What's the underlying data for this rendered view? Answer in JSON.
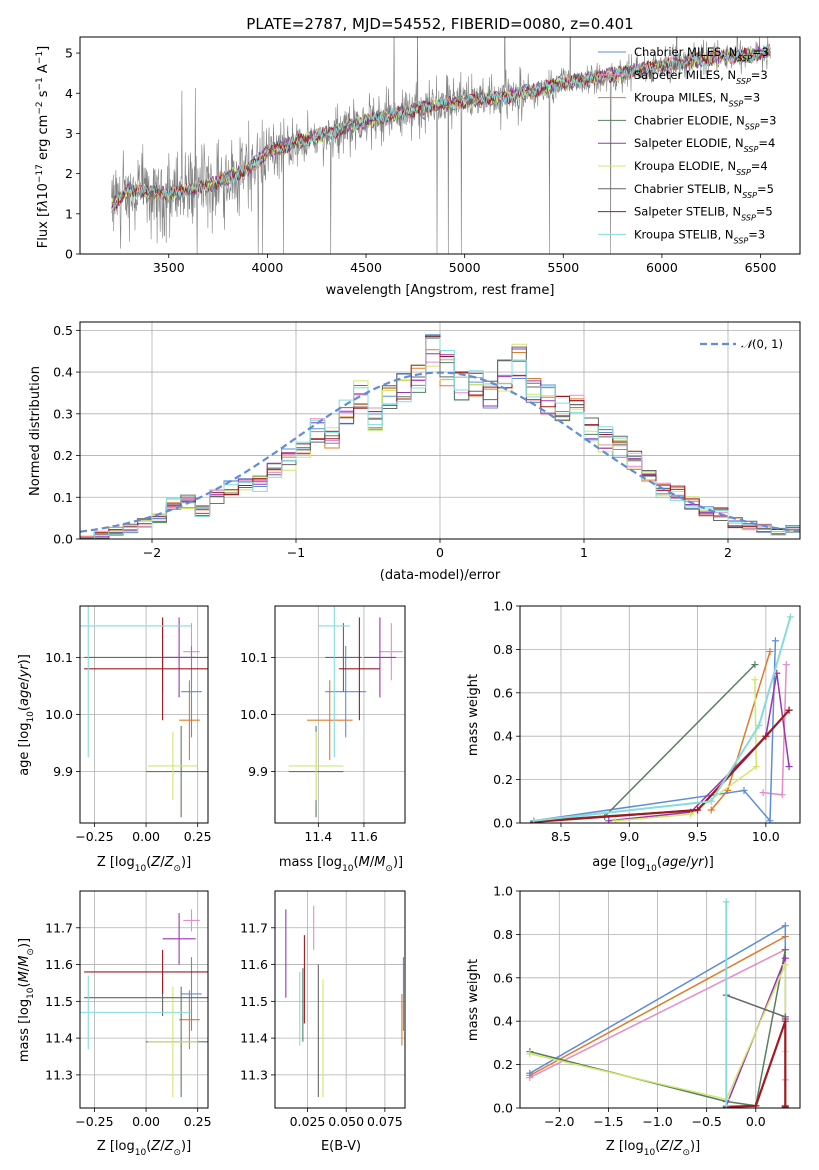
{
  "figure": {
    "title": "PLATE=2787, MJD=54552, FIBERID=0080, z=0.401"
  },
  "colors": [
    "#e07b2a",
    "#e88bc8",
    "#5f8dd9",
    "#587f5f",
    "#9a35b0",
    "#d0e86a",
    "#666666",
    "#a01a20",
    "#86dcdc"
  ],
  "legend_spectrum": [
    {
      "label": "Chabrier MILES, N$_{SSP}$=3",
      "base": "Chabrier MILES, N",
      "sub": "SSP",
      "tail": "=3",
      "color": "#5f8dd9"
    },
    {
      "label": "Salpeter MILES, N$_{SSP}$=3",
      "base": "Salpeter MILES, N",
      "sub": "SSP",
      "tail": "=3",
      "color": "#e88bc8"
    },
    {
      "label": "Kroupa MILES, N$_{SSP}$=3",
      "base": "Kroupa MILES, N",
      "sub": "SSP",
      "tail": "=3",
      "color": "#e07b2a"
    },
    {
      "label": "Chabrier ELODIE, N$_{SSP}$=3",
      "base": "Chabrier ELODIE, N",
      "sub": "SSP",
      "tail": "=3",
      "color": "#587f5f"
    },
    {
      "label": "Salpeter ELODIE, N$_{SSP}$=4",
      "base": "Salpeter ELODIE, N",
      "sub": "SSP",
      "tail": "=4",
      "color": "#9a35b0"
    },
    {
      "label": "Kroupa ELODIE, N$_{SSP}$=4",
      "base": "Kroupa ELODIE, N",
      "sub": "SSP",
      "tail": "=4",
      "color": "#d0e86a"
    },
    {
      "label": "Chabrier STELIB, N$_{SSP}$=5",
      "base": "Chabrier STELIB, N",
      "sub": "SSP",
      "tail": "=5",
      "color": "#666666"
    },
    {
      "label": "Salpeter STELIB, N$_{SSP}$=5",
      "base": "Salpeter STELIB, N",
      "sub": "SSP",
      "tail": "=5",
      "color": "#a01a20"
    },
    {
      "label": "Kroupa STELIB, N$_{SSP}$=3",
      "base": "Kroupa STELIB, N",
      "sub": "SSP",
      "tail": "=3",
      "color": "#86dcdc"
    }
  ],
  "chart_data": [
    {
      "id": "spectrum",
      "type": "line",
      "xlabel": "wavelength [Angstrom, rest frame]",
      "ylabel": "Flux [f$_\\lambda$10$^{-17}$ erg cm$^{-2}$ s$^{-1}$ A$^{-1}$]",
      "xlim": [
        3050,
        6700
      ],
      "ylim": [
        0,
        5.4
      ],
      "xticks": [
        3500,
        4000,
        4500,
        5000,
        5500,
        6000,
        6500
      ],
      "yticks": [
        0,
        1,
        2,
        3,
        4,
        5
      ],
      "observed": {
        "color": "#808080",
        "x_range": [
          3210,
          6550
        ],
        "continuum": [
          [
            3210,
            1.2
          ],
          [
            3300,
            1.55
          ],
          [
            3500,
            1.5
          ],
          [
            3700,
            1.7
          ],
          [
            3900,
            2.1
          ],
          [
            4000,
            2.55
          ],
          [
            4200,
            2.8
          ],
          [
            4500,
            3.3
          ],
          [
            4800,
            3.65
          ],
          [
            5000,
            3.8
          ],
          [
            5200,
            3.85
          ],
          [
            5500,
            4.25
          ],
          [
            5800,
            4.45
          ],
          [
            6000,
            4.7
          ],
          [
            6300,
            4.9
          ],
          [
            6550,
            5.0
          ]
        ]
      },
      "models": {
        "continuum": [
          [
            3210,
            1.2
          ],
          [
            3300,
            1.6
          ],
          [
            3500,
            1.5
          ],
          [
            3700,
            1.7
          ],
          [
            3900,
            2.1
          ],
          [
            4000,
            2.55
          ],
          [
            4200,
            2.85
          ],
          [
            4500,
            3.3
          ],
          [
            4800,
            3.65
          ],
          [
            5000,
            3.8
          ],
          [
            5200,
            3.9
          ],
          [
            5500,
            4.25
          ],
          [
            5800,
            4.5
          ],
          [
            6000,
            4.7
          ],
          [
            6300,
            4.9
          ],
          [
            6550,
            5.0
          ]
        ]
      }
    },
    {
      "id": "residuals",
      "type": "histogram",
      "xlabel": "(data-model)/error",
      "ylabel": "Normed distribution",
      "xlim": [
        -2.5,
        2.5
      ],
      "ylim": [
        0,
        0.52
      ],
      "xticks": [
        -2,
        -1,
        0,
        1,
        2
      ],
      "yticks": [
        0.0,
        0.1,
        0.2,
        0.3,
        0.4,
        0.5
      ],
      "bin_edges": [
        -2.5,
        2.5
      ],
      "bin_width": 0.1,
      "base_bins": [
        0.005,
        0.01,
        0.02,
        0.025,
        0.04,
        0.05,
        0.08,
        0.09,
        0.07,
        0.1,
        0.12,
        0.14,
        0.13,
        0.16,
        0.19,
        0.22,
        0.26,
        0.24,
        0.3,
        0.34,
        0.29,
        0.35,
        0.36,
        0.39,
        0.46,
        0.41,
        0.37,
        0.38,
        0.35,
        0.39,
        0.42,
        0.36,
        0.33,
        0.32,
        0.31,
        0.27,
        0.24,
        0.22,
        0.19,
        0.16,
        0.12,
        0.11,
        0.09,
        0.07,
        0.06,
        0.04,
        0.03,
        0.025,
        0.02,
        0.02
      ],
      "normal": {
        "label": "$\\mathcal{N}(0,1)$",
        "color": "#5f8dd9",
        "style": "dashed"
      }
    },
    {
      "id": "age-vs-Z",
      "type": "errorbar",
      "xlabel": "Z [log$_{10}$(Z/Z$_\\odot$)]",
      "ylabel": "age  [log$_{10}$(age/yr)]",
      "xlim": [
        -0.32,
        0.3
      ],
      "ylim": [
        9.81,
        10.19
      ],
      "xticks": [
        -0.25,
        0.0,
        0.25
      ],
      "yticks": [
        9.9,
        10.0,
        10.1
      ],
      "points": [
        {
          "color": "#e07b2a",
          "x": 0.21,
          "xerr": 0.05,
          "y": 9.99,
          "yerr": 0.07
        },
        {
          "color": "#e88bc8",
          "x": 0.22,
          "xerr": 0.04,
          "y": 10.11,
          "yerr": 0.05
        },
        {
          "color": "#5f8dd9",
          "x": 0.22,
          "xerr": 0.05,
          "y": 10.04,
          "yerr": 0.08
        },
        {
          "color": "#587f5f",
          "x": 0.17,
          "xerr": 0.17,
          "y": 9.9,
          "yerr": 0.08
        },
        {
          "color": "#9a35b0",
          "x": 0.16,
          "xerr": 0.08,
          "y": 10.1,
          "yerr": 0.07
        },
        {
          "color": "#d0e86a",
          "x": 0.13,
          "xerr": 0.12,
          "y": 9.91,
          "yerr": 0.06
        },
        {
          "color": "#666666",
          "x": 0.08,
          "xerr": 0.38,
          "y": 10.1,
          "yerr": 0.06
        },
        {
          "color": "#a01a20",
          "x": 0.08,
          "xerr": 0.38,
          "y": 10.08,
          "yerr": 0.09
        },
        {
          "color": "#86dcdc",
          "x": -0.28,
          "xerr": 0.5,
          "y": 10.155,
          "yerr": 0.23
        }
      ]
    },
    {
      "id": "age-vs-mass",
      "type": "errorbar",
      "xlabel": "mass [log$_{10}$(M/M$_\\odot$)]",
      "ylabel": "",
      "xlim": [
        11.21,
        11.78
      ],
      "ylim": [
        9.81,
        10.19
      ],
      "xticks": [
        11.4,
        11.6
      ],
      "yticks": [
        9.9,
        10.0,
        10.1
      ],
      "points": [
        {
          "color": "#e07b2a",
          "x": 11.45,
          "xerr": 0.1,
          "y": 9.99,
          "yerr": 0.07
        },
        {
          "color": "#e88bc8",
          "x": 11.72,
          "xerr": 0.05,
          "y": 10.11,
          "yerr": 0.05
        },
        {
          "color": "#5f8dd9",
          "x": 11.52,
          "xerr": 0.09,
          "y": 10.04,
          "yerr": 0.08
        },
        {
          "color": "#587f5f",
          "x": 11.39,
          "xerr": 0.12,
          "y": 9.9,
          "yerr": 0.08
        },
        {
          "color": "#9a35b0",
          "x": 11.67,
          "xerr": 0.07,
          "y": 10.1,
          "yerr": 0.07
        },
        {
          "color": "#d0e86a",
          "x": 11.39,
          "xerr": 0.12,
          "y": 9.91,
          "yerr": 0.06
        },
        {
          "color": "#666666",
          "x": 11.51,
          "xerr": 0.08,
          "y": 10.1,
          "yerr": 0.06
        },
        {
          "color": "#a01a20",
          "x": 11.58,
          "xerr": 0.09,
          "y": 10.08,
          "yerr": 0.09
        },
        {
          "color": "#86dcdc",
          "x": 11.47,
          "xerr": 0.07,
          "y": 10.155,
          "yerr": 0.23
        }
      ]
    },
    {
      "id": "massweight-vs-age",
      "type": "line",
      "xlabel": "age  [log$_{10}$(age/yr)]",
      "ylabel": "mass weight",
      "xlim": [
        8.2,
        10.25
      ],
      "ylim": [
        0,
        1.0
      ],
      "xticks": [
        8.5,
        9.0,
        9.5,
        10.0
      ],
      "yticks": [
        0.0,
        0.2,
        0.4,
        0.6,
        0.8,
        1.0
      ],
      "series": [
        {
          "color": "#e07b2a",
          "points": [
            [
              9.6,
              0.06
            ],
            [
              9.72,
              0.15
            ],
            [
              10.03,
              0.79
            ]
          ],
          "width": 1.5
        },
        {
          "color": "#e88bc8",
          "points": [
            [
              9.98,
              0.14
            ],
            [
              10.12,
              0.13
            ],
            [
              10.15,
              0.73
            ]
          ],
          "width": 1.5
        },
        {
          "color": "#5f8dd9",
          "points": [
            [
              8.3,
              0.01
            ],
            [
              9.84,
              0.15
            ],
            [
              10.03,
              0.01
            ],
            [
              10.07,
              0.84
            ]
          ],
          "width": 1.5
        },
        {
          "color": "#587f5f",
          "points": [
            [
              8.82,
              0.03
            ],
            [
              9.92,
              0.73
            ]
          ],
          "width": 1.5
        },
        {
          "color": "#9a35b0",
          "points": [
            [
              8.85,
              0.01
            ],
            [
              9.45,
              0.05
            ],
            [
              10.0,
              0.4
            ],
            [
              10.08,
              0.69
            ],
            [
              10.17,
              0.26
            ]
          ],
          "width": 1.5
        },
        {
          "color": "#d0e86a",
          "points": [
            [
              8.9,
              0.01
            ],
            [
              9.45,
              0.04
            ],
            [
              9.93,
              0.26
            ],
            [
              9.92,
              0.66
            ]
          ],
          "width": 1.5
        },
        {
          "color": "#666666",
          "points": [
            [
              8.3,
              0.01
            ],
            [
              9.5,
              0.06
            ],
            [
              10.17,
              0.52
            ]
          ],
          "width": 1.5
        },
        {
          "color": "#a01a20",
          "points": [
            [
              8.3,
              0.005
            ],
            [
              9.5,
              0.06
            ],
            [
              10.0,
              0.4
            ],
            [
              10.17,
              0.52
            ]
          ],
          "width": 2.2
        },
        {
          "color": "#86dcdc",
          "points": [
            [
              8.3,
              0.01
            ],
            [
              9.6,
              0.1
            ],
            [
              9.95,
              0.45
            ],
            [
              10.18,
              0.95
            ]
          ],
          "width": 2.0
        }
      ]
    },
    {
      "id": "mass-vs-Z",
      "type": "errorbar",
      "xlabel": "Z [log$_{10}$(Z/Z$_\\odot$)]",
      "ylabel": "mass [log$_{10}$(M/M$_\\odot$)]",
      "xlim": [
        -0.32,
        0.3
      ],
      "ylim": [
        11.21,
        11.8
      ],
      "xticks": [
        -0.25,
        0.0,
        0.25
      ],
      "yticks": [
        11.3,
        11.4,
        11.5,
        11.6,
        11.7
      ],
      "points": [
        {
          "color": "#e07b2a",
          "x": 0.21,
          "xerr": 0.05,
          "y": 11.45,
          "yerr": 0.08
        },
        {
          "color": "#e88bc8",
          "x": 0.22,
          "xerr": 0.04,
          "y": 11.72,
          "yerr": 0.03
        },
        {
          "color": "#5f8dd9",
          "x": 0.22,
          "xerr": 0.05,
          "y": 11.52,
          "yerr": 0.1
        },
        {
          "color": "#587f5f",
          "x": 0.17,
          "xerr": 0.17,
          "y": 11.39,
          "yerr": 0.15
        },
        {
          "color": "#9a35b0",
          "x": 0.16,
          "xerr": 0.08,
          "y": 11.67,
          "yerr": 0.07
        },
        {
          "color": "#d0e86a",
          "x": 0.13,
          "xerr": 0.12,
          "y": 11.39,
          "yerr": 0.15
        },
        {
          "color": "#666666",
          "x": 0.08,
          "xerr": 0.38,
          "y": 11.51,
          "yerr": 0.05
        },
        {
          "color": "#a01a20",
          "x": 0.08,
          "xerr": 0.38,
          "y": 11.58,
          "yerr": 0.06
        },
        {
          "color": "#86dcdc",
          "x": -0.28,
          "xerr": 0.5,
          "y": 11.47,
          "yerr": 0.1
        }
      ]
    },
    {
      "id": "mass-vs-ebv",
      "type": "errorbar",
      "xlabel": "E(B-V)",
      "ylabel": "",
      "xlim": [
        0.004,
        0.088
      ],
      "ylim": [
        11.21,
        11.8
      ],
      "xticks": [
        0.025,
        0.05,
        0.075
      ],
      "xticklabels": [
        "0.025",
        "0.050",
        "0.075"
      ],
      "yticks": [
        11.3,
        11.4,
        11.5,
        11.6,
        11.7
      ],
      "points": [
        {
          "color": "#e07b2a",
          "x": 0.086,
          "xerr": 0,
          "y": 11.45,
          "yerr": 0.07
        },
        {
          "color": "#e88bc8",
          "x": 0.029,
          "xerr": 0,
          "y": 11.7,
          "yerr": 0.06
        },
        {
          "color": "#5f8dd9",
          "x": 0.087,
          "xerr": 0,
          "y": 11.52,
          "yerr": 0.1
        },
        {
          "color": "#587f5f",
          "x": 0.022,
          "xerr": 0,
          "y": 11.49,
          "yerr": 0.1
        },
        {
          "color": "#9a35b0",
          "x": 0.011,
          "xerr": 0,
          "y": 11.63,
          "yerr": 0.12
        },
        {
          "color": "#d0e86a",
          "x": 0.035,
          "xerr": 0,
          "y": 11.4,
          "yerr": 0.16
        },
        {
          "color": "#666666",
          "x": 0.032,
          "xerr": 0,
          "y": 11.42,
          "yerr": 0.18
        },
        {
          "color": "#a01a20",
          "x": 0.023,
          "xerr": 0,
          "y": 11.56,
          "yerr": 0.12
        },
        {
          "color": "#86dcdc",
          "x": 0.02,
          "xerr": 0,
          "y": 11.48,
          "yerr": 0.1
        }
      ]
    },
    {
      "id": "massweight-vs-Z",
      "type": "line",
      "xlabel": "Z [log$_{10}$(Z/Z$_\\odot$)]",
      "ylabel": "mass weight",
      "xlim": [
        -2.4,
        0.45
      ],
      "ylim": [
        0,
        1.0
      ],
      "xticks": [
        -2.0,
        -1.5,
        -1.0,
        -0.5,
        0.0
      ],
      "yticks": [
        0.0,
        0.2,
        0.4,
        0.6,
        0.8,
        1.0
      ],
      "series": [
        {
          "color": "#e07b2a",
          "points": [
            [
              -2.3,
              0.15
            ],
            [
              0.3,
              0.79
            ]
          ],
          "width": 1.5
        },
        {
          "color": "#e88bc8",
          "points": [
            [
              -2.3,
              0.14
            ],
            [
              0.3,
              0.73
            ],
            [
              0.3,
              0.13
            ]
          ],
          "width": 1.5
        },
        {
          "color": "#5f8dd9",
          "points": [
            [
              -2.3,
              0.16
            ],
            [
              0.3,
              0.84
            ],
            [
              0.3,
              0.01
            ]
          ],
          "width": 1.5
        },
        {
          "color": "#587f5f",
          "points": [
            [
              -2.3,
              0.26
            ],
            [
              -0.3,
              0.03
            ],
            [
              0.0,
              0.01
            ],
            [
              0.3,
              0.73
            ]
          ],
          "width": 1.5
        },
        {
          "color": "#9a35b0",
          "points": [
            [
              -0.3,
              0.01
            ],
            [
              0.3,
              0.69
            ],
            [
              0.3,
              0.41
            ]
          ],
          "width": 1.5
        },
        {
          "color": "#d0e86a",
          "points": [
            [
              -2.3,
              0.25
            ],
            [
              -0.3,
              0.04
            ],
            [
              0.3,
              0.66
            ],
            [
              0.3,
              0.26
            ]
          ],
          "width": 1.5
        },
        {
          "color": "#666666",
          "points": [
            [
              -0.3,
              0.52
            ],
            [
              0.3,
              0.42
            ],
            [
              0.3,
              0.01
            ]
          ],
          "width": 1.5
        },
        {
          "color": "#a01a20",
          "points": [
            [
              -0.3,
              0.005
            ],
            [
              0.0,
              0.01
            ],
            [
              0.3,
              0.4
            ],
            [
              0.3,
              0.005
            ]
          ],
          "width": 2.2
        },
        {
          "color": "#86dcdc",
          "points": [
            [
              -0.3,
              0.95
            ],
            [
              -0.3,
              0.01
            ]
          ],
          "width": 2.0
        }
      ]
    }
  ]
}
